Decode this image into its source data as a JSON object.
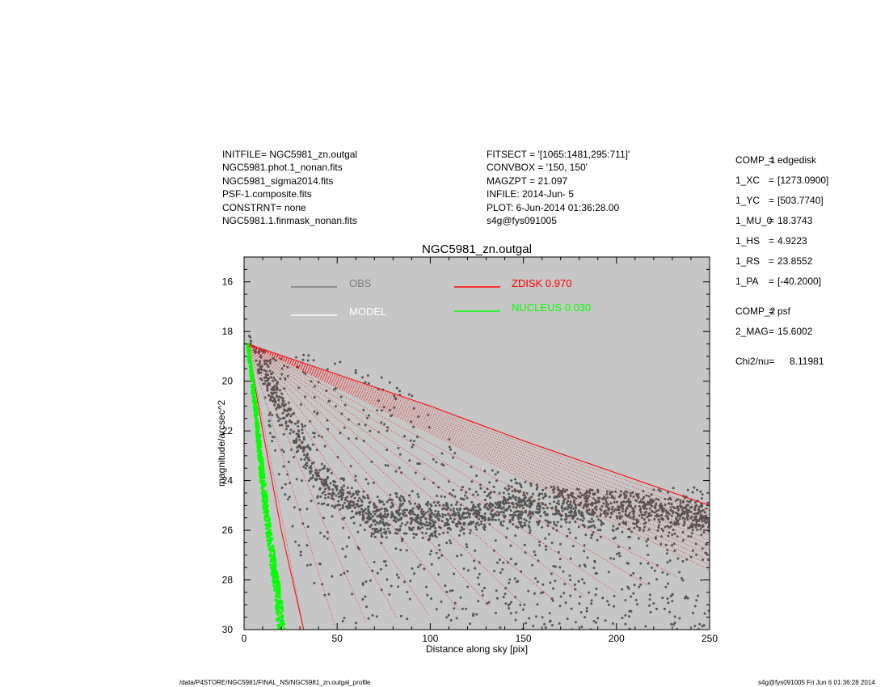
{
  "header_left": [
    "INITFILE= NGC5981_zn.outgal",
    "NGC5981.phot.1_nonan.fits",
    "NGC5981_sigma2014.fits",
    "PSF-1.composite.fits",
    "CONSTRNT= none",
    "NGC5981.1.finmask_nonan.fits"
  ],
  "header_mid": [
    "FITSECT = '[1065:1481,295:711]'",
    "CONVBOX = '150, 150'",
    "MAGZPT =            21.097",
    "INFILE: 2014-Jun- 5",
    "PLOT:  6-Jun-2014 01:36:28.00",
    "s4g@fys091005"
  ],
  "params": [
    {
      "key": "COMP_1",
      "value": "edgedisk"
    },
    {
      "key": "1_XC",
      "value": "[1273.0900]"
    },
    {
      "key": "1_YC",
      "value": "[503.7740]"
    },
    {
      "key": "1_MU_0",
      "value": "18.3743"
    },
    {
      "key": "1_HS",
      "value": "4.9223"
    },
    {
      "key": "1_RS",
      "value": "23.8552"
    },
    {
      "key": "1_PA",
      "value": "[-40.2000]"
    },
    {
      "key": "COMP_2",
      "value": "psf"
    },
    {
      "key": "2_MAG",
      "value": "15.6002"
    },
    {
      "key": "Chi2/nu=",
      "value": "8.11981",
      "plain": true
    }
  ],
  "footer": {
    "left": "/data/P4STORE/NGC5981/FINAL_NS/NGC5981_zn.outgal_profile",
    "right": "s4g@fys091005  Fri Jun  6 01:36:28 2014"
  },
  "chart_data": {
    "type": "scatter",
    "title": "NGC5981_zn.outgal",
    "xlabel": "Distance along sky [pix]",
    "ylabel": "magnitude/arcsec^2",
    "xlim": [
      0,
      250
    ],
    "ylim": [
      30,
      15
    ],
    "y_inverted": true,
    "x_ticks": [
      0,
      50,
      100,
      150,
      200,
      250
    ],
    "y_ticks": [
      16,
      18,
      20,
      22,
      24,
      26,
      28,
      30
    ],
    "plot_background": "#c6c6c6",
    "legend": [
      {
        "name": "OBS",
        "color": "#7a7a7a"
      },
      {
        "name": "MODEL",
        "color": "#ffffff"
      },
      {
        "name": "ZDISK",
        "value": "0.970",
        "color": "#ff0000"
      },
      {
        "name": "NUCLEUS",
        "value": "0.030",
        "color": "#00ff00"
      }
    ],
    "series": [
      {
        "name": "OBS",
        "color": "#555555",
        "upper_envelope": [
          [
            0,
            17.4
          ],
          [
            5,
            18.6
          ],
          [
            15,
            18.85
          ],
          [
            30,
            18.9
          ],
          [
            50,
            19.1
          ],
          [
            70,
            19.6
          ],
          [
            90,
            20.5
          ],
          [
            100,
            21.3
          ],
          [
            110,
            22.2
          ],
          [
            120,
            23.0
          ],
          [
            140,
            23.8
          ],
          [
            160,
            24.2
          ],
          [
            200,
            24.4
          ],
          [
            250,
            24.2
          ]
        ],
        "lower_envelope": [
          [
            5,
            18.6
          ],
          [
            15,
            22.5
          ],
          [
            30,
            27.5
          ],
          [
            50,
            30
          ],
          [
            250,
            30
          ]
        ],
        "dense_core": [
          [
            10,
            19.5
          ],
          [
            40,
            24.0
          ],
          [
            70,
            25.5
          ],
          [
            100,
            25.5
          ],
          [
            150,
            25.0
          ],
          [
            200,
            25.0
          ],
          [
            250,
            25.5
          ]
        ]
      },
      {
        "name": "ZDISK",
        "color": "#ff0000",
        "center": [
          2,
          18.5
        ],
        "upper_edge": [
          [
            2,
            18.5
          ],
          [
            100,
            21.0
          ],
          [
            150,
            22.4
          ],
          [
            200,
            23.7
          ],
          [
            250,
            25.0
          ]
        ],
        "lower_edge": [
          [
            2,
            18.5
          ],
          [
            10,
            22.0
          ],
          [
            20,
            26.0
          ],
          [
            32,
            30.0
          ]
        ],
        "bottom_edge": [
          [
            32,
            30
          ],
          [
            200,
            28.5
          ],
          [
            250,
            27.6
          ]
        ]
      },
      {
        "name": "NUCLEUS",
        "color": "#00ff00",
        "band": [
          [
            2,
            18.5
          ],
          [
            6,
            21.0
          ],
          [
            10,
            24.0
          ],
          [
            14,
            26.5
          ],
          [
            18,
            28.5
          ],
          [
            20,
            30.0
          ]
        ]
      }
    ]
  }
}
